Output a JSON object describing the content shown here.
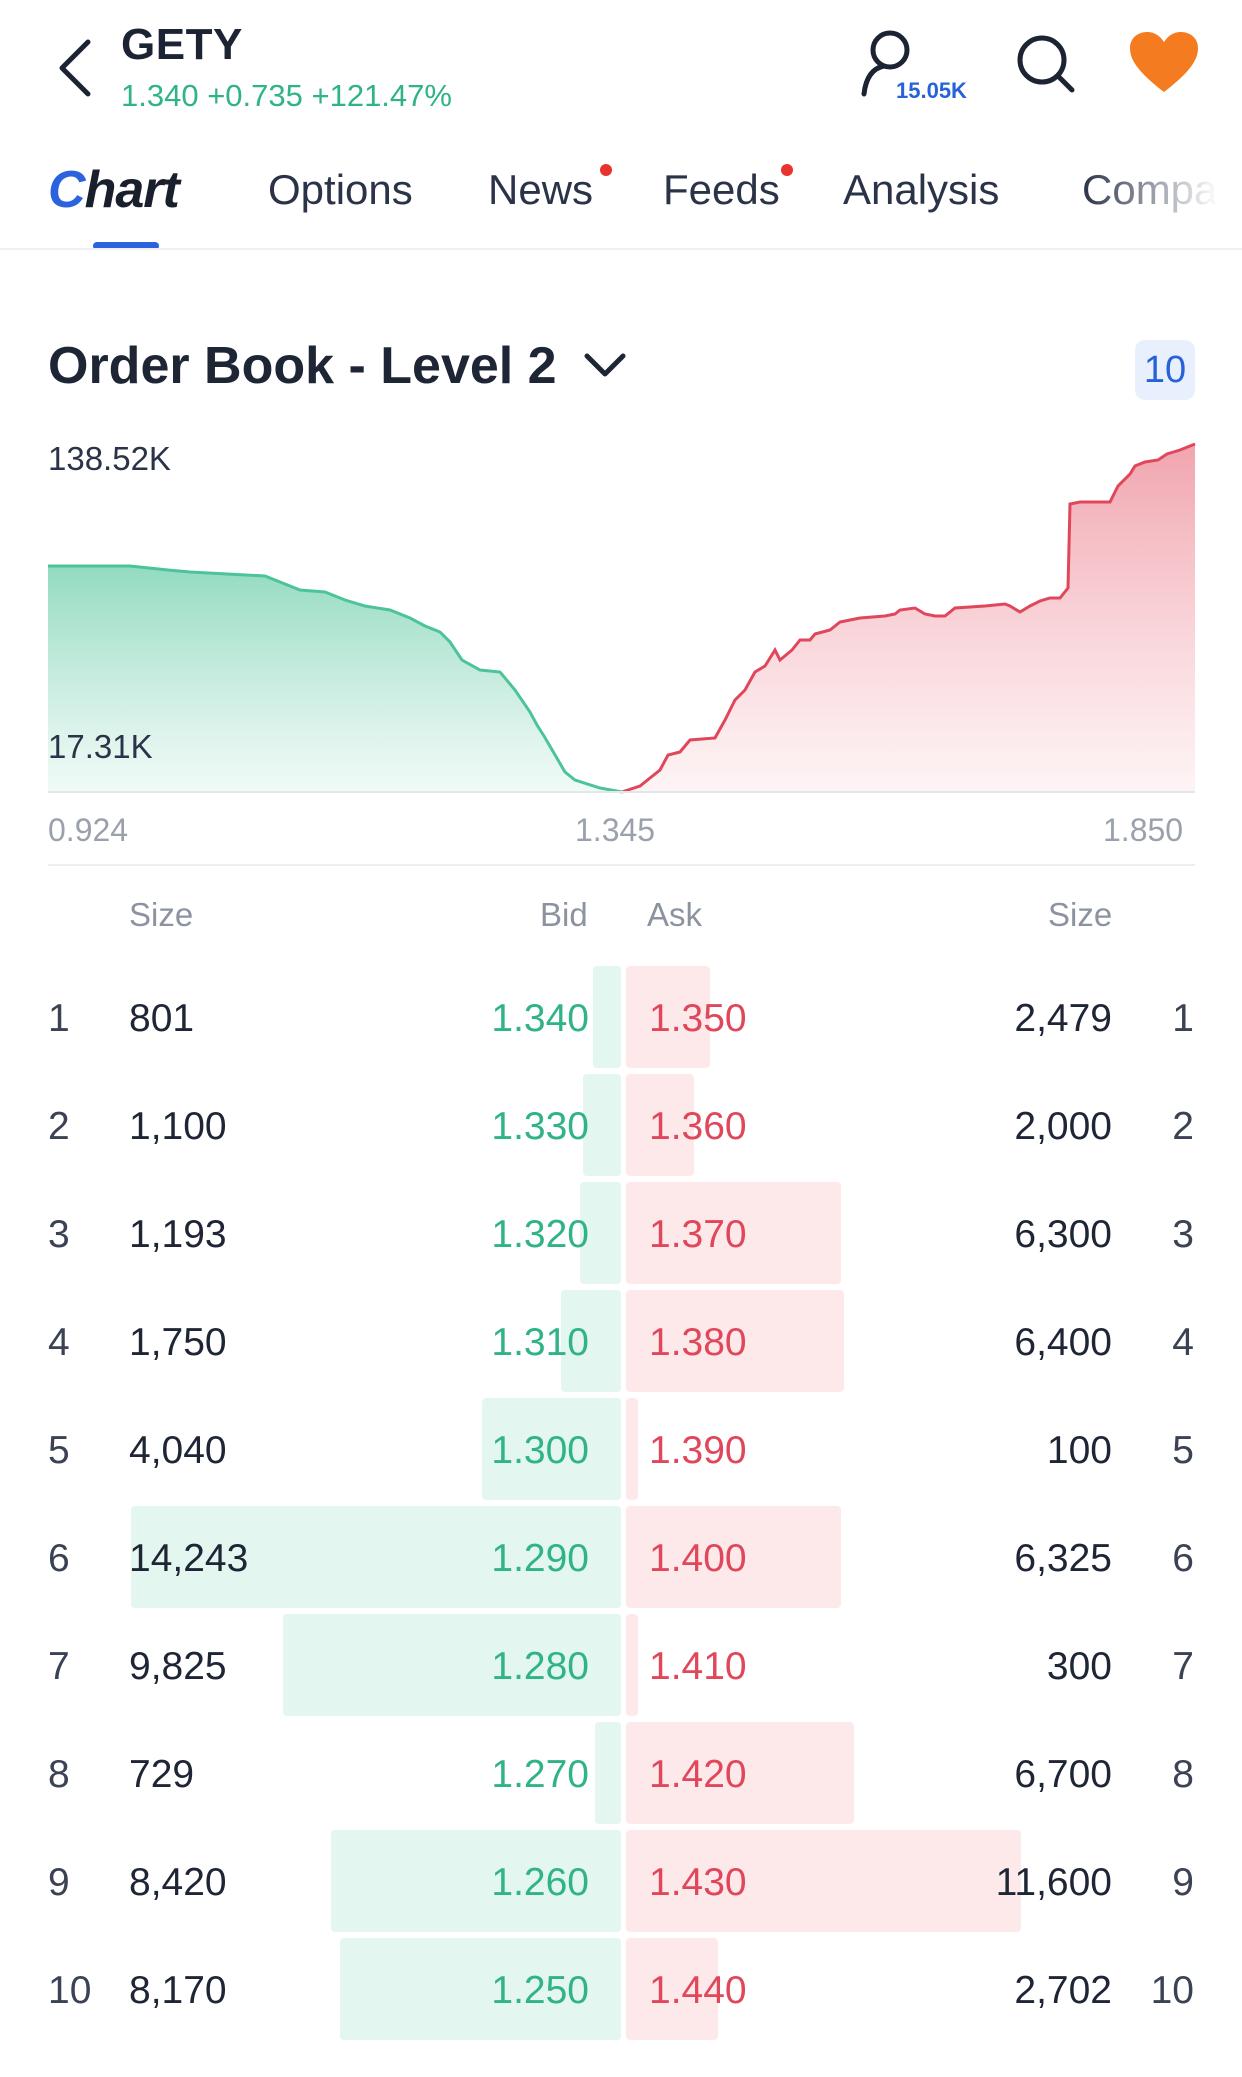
{
  "header": {
    "ticker": "GETY",
    "quote": "1.340 +0.735 +121.47%",
    "followers": "15.05K",
    "icons": {
      "back": "chevron-left-icon",
      "user": "user-icon",
      "search": "search-icon",
      "watchlist": "heart-icon"
    },
    "colors": {
      "up": "#2fb387",
      "accent": "#2b63df",
      "heart": "#f47b20"
    }
  },
  "tabs": {
    "active": "Chart",
    "items": [
      {
        "label": "Options",
        "dot": false
      },
      {
        "label": "News",
        "dot": true
      },
      {
        "label": "Feeds",
        "dot": true
      },
      {
        "label": "Analysis",
        "dot": false
      },
      {
        "label": "Company",
        "dot": false
      }
    ]
  },
  "order_book": {
    "title": "Order Book - Level 2",
    "depth": "10",
    "chart": {
      "max_label": "138.52K",
      "min_label": "17.31K",
      "x_left": "0.924",
      "x_mid": "1.345",
      "x_right": "1.850",
      "bid_color": "#4dc39a",
      "ask_color": "#e0475b"
    },
    "columns": {
      "size_left": "Size",
      "bid": "Bid",
      "ask": "Ask",
      "size_right": "Size"
    },
    "rows": [
      {
        "n": "1",
        "bid_size": "801",
        "bid": "1.340",
        "ask": "1.350",
        "ask_size": "2,479"
      },
      {
        "n": "2",
        "bid_size": "1,100",
        "bid": "1.330",
        "ask": "1.360",
        "ask_size": "2,000"
      },
      {
        "n": "3",
        "bid_size": "1,193",
        "bid": "1.320",
        "ask": "1.370",
        "ask_size": "6,300"
      },
      {
        "n": "4",
        "bid_size": "1,750",
        "bid": "1.310",
        "ask": "1.380",
        "ask_size": "6,400"
      },
      {
        "n": "5",
        "bid_size": "4,040",
        "bid": "1.300",
        "ask": "1.390",
        "ask_size": "100"
      },
      {
        "n": "6",
        "bid_size": "14,243",
        "bid": "1.290",
        "ask": "1.400",
        "ask_size": "6,325"
      },
      {
        "n": "7",
        "bid_size": "9,825",
        "bid": "1.280",
        "ask": "1.410",
        "ask_size": "300"
      },
      {
        "n": "8",
        "bid_size": "729",
        "bid": "1.270",
        "ask": "1.420",
        "ask_size": "6,700"
      },
      {
        "n": "9",
        "bid_size": "8,420",
        "bid": "1.260",
        "ask": "1.430",
        "ask_size": "11,600"
      },
      {
        "n": "10",
        "bid_size": "8,170",
        "bid": "1.250",
        "ask": "1.440",
        "ask_size": "2,702"
      }
    ]
  }
}
